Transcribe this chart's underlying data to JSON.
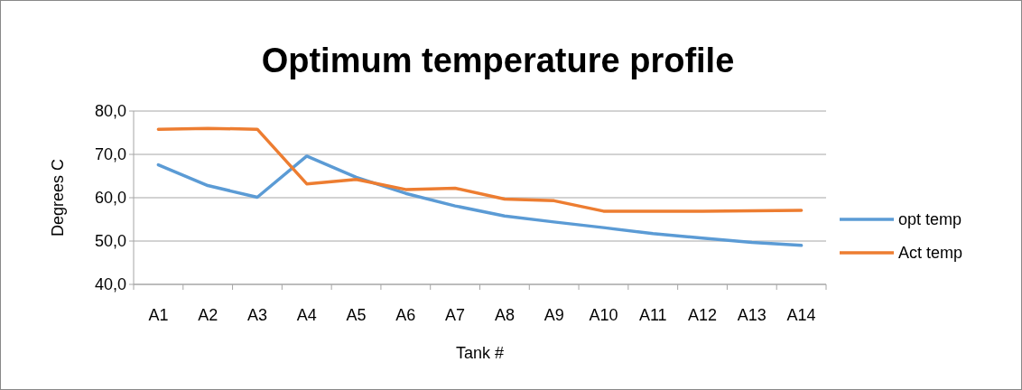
{
  "chart_data": {
    "type": "line",
    "title": "Optimum temperature profile",
    "xlabel": "Tank #",
    "ylabel": "Degrees C",
    "categories": [
      "A1",
      "A2",
      "A3",
      "A4",
      "A5",
      "A6",
      "A7",
      "A8",
      "A9",
      "A10",
      "A11",
      "A12",
      "A13",
      "A14"
    ],
    "series": [
      {
        "name": "opt temp",
        "color": "#5b9bd5",
        "values": [
          67.6,
          62.8,
          60.1,
          69.6,
          64.7,
          61.0,
          58.1,
          55.8,
          54.4,
          53.1,
          51.7,
          50.7,
          49.7,
          49.0
        ]
      },
      {
        "name": "Act temp",
        "color": "#ed7d31",
        "values": [
          75.8,
          76.0,
          75.8,
          63.2,
          64.2,
          61.9,
          62.2,
          59.7,
          59.3,
          56.9,
          56.9,
          56.9,
          57.0,
          57.1
        ]
      }
    ],
    "ylim": [
      40,
      80
    ],
    "yticks": [
      {
        "value": 40,
        "label": "40,0"
      },
      {
        "value": 50,
        "label": "50,0"
      },
      {
        "value": 60,
        "label": "60,0"
      },
      {
        "value": 70,
        "label": "70,0"
      },
      {
        "value": 80,
        "label": "80,0"
      }
    ],
    "grid": "y",
    "legend": "right",
    "marker": "none",
    "line_style": "solid"
  }
}
